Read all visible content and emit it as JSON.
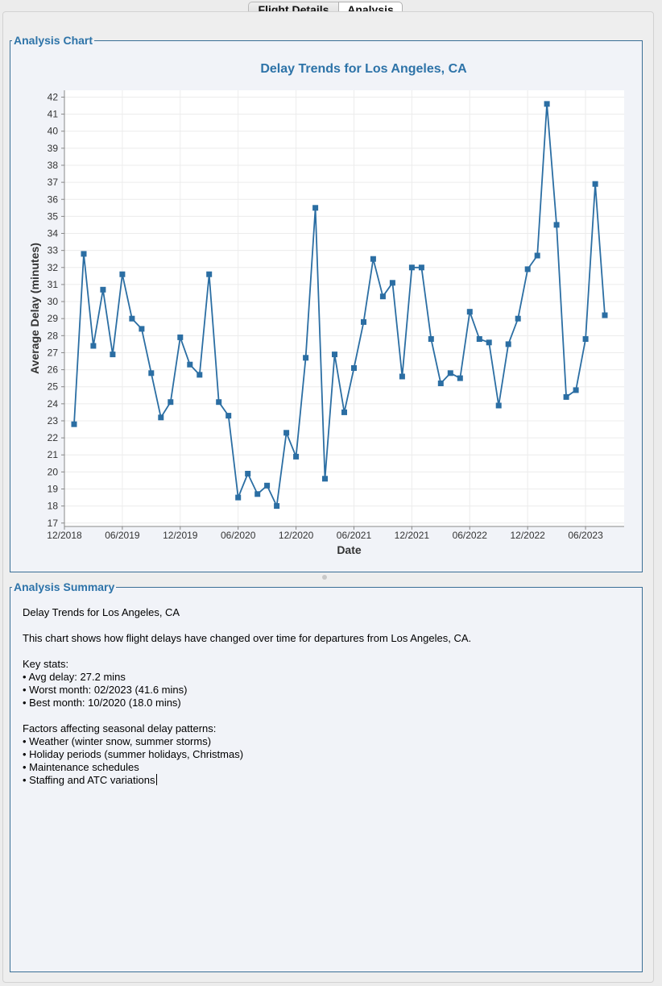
{
  "tabs": [
    {
      "label": "Flight Details",
      "selected": false
    },
    {
      "label": "Analysis",
      "selected": true
    }
  ],
  "chart_panel": {
    "title": "Analysis Chart"
  },
  "summary_panel": {
    "title": "Analysis Summary",
    "paragraphs": [
      [
        "Delay Trends for Los Angeles, CA"
      ],
      [
        "This chart shows how flight delays have changed over time for departures from Los Angeles, CA."
      ],
      [
        "Key stats:",
        "• Avg delay: 27.2 mins",
        "• Worst month: 02/2023 (41.6 mins)",
        "• Best month: 10/2020 (18.0 mins)"
      ],
      [
        "Factors affecting seasonal delay patterns:",
        "• Weather (winter snow, summer storms)",
        "• Holiday periods (summer holidays, Christmas)",
        "• Maintenance schedules",
        "• Staffing and ATC variations"
      ]
    ]
  },
  "chart_data": {
    "type": "line",
    "title": "Delay Trends for Los Angeles, CA",
    "xlabel": "Date",
    "ylabel": "Average Delay (minutes)",
    "ylim": [
      16.8,
      42.4
    ],
    "yticks": [
      17,
      18,
      19,
      20,
      21,
      22,
      23,
      24,
      25,
      26,
      27,
      28,
      29,
      30,
      31,
      32,
      33,
      34,
      35,
      36,
      37,
      38,
      39,
      40,
      41,
      42
    ],
    "xlim": [
      "2018-12",
      "2023-10"
    ],
    "xticks": [
      "12/2018",
      "06/2019",
      "12/2019",
      "06/2020",
      "12/2020",
      "06/2021",
      "12/2021",
      "06/2022",
      "12/2022",
      "06/2023"
    ],
    "grid": true,
    "series_color": "#2b6ea3",
    "series": [
      {
        "x": [
          "2019-01",
          "2019-02",
          "2019-03",
          "2019-04",
          "2019-05",
          "2019-06",
          "2019-07",
          "2019-08",
          "2019-09",
          "2019-10",
          "2019-11",
          "2019-12",
          "2020-01",
          "2020-02",
          "2020-03",
          "2020-04",
          "2020-05",
          "2020-06",
          "2020-07",
          "2020-08",
          "2020-09",
          "2020-10",
          "2020-11",
          "2020-12",
          "2021-01",
          "2021-02",
          "2021-03",
          "2021-04",
          "2021-05",
          "2021-06",
          "2021-07",
          "2021-08",
          "2021-09",
          "2021-10",
          "2021-11",
          "2021-12",
          "2022-01",
          "2022-02",
          "2022-03",
          "2022-04",
          "2022-05",
          "2022-06",
          "2022-07",
          "2022-08",
          "2022-09",
          "2022-10",
          "2022-11",
          "2022-12",
          "2023-01",
          "2023-02",
          "2023-03",
          "2023-04",
          "2023-05",
          "2023-06",
          "2023-07",
          "2023-08"
        ],
        "y": [
          22.8,
          32.8,
          27.4,
          30.7,
          26.9,
          31.6,
          29.0,
          28.4,
          25.8,
          23.2,
          24.1,
          27.9,
          26.3,
          25.7,
          31.6,
          24.1,
          23.3,
          18.5,
          19.9,
          18.7,
          19.2,
          18.0,
          22.3,
          20.9,
          26.7,
          35.5,
          19.6,
          26.9,
          23.5,
          26.1,
          28.8,
          32.5,
          30.3,
          31.1,
          25.6,
          32.0,
          32.0,
          27.8,
          25.2,
          25.8,
          25.5,
          29.4,
          27.8,
          27.6,
          23.9,
          27.5,
          29.0,
          31.9,
          32.7,
          41.6,
          34.5,
          24.4,
          24.8,
          27.8,
          36.9,
          29.2
        ]
      }
    ]
  }
}
